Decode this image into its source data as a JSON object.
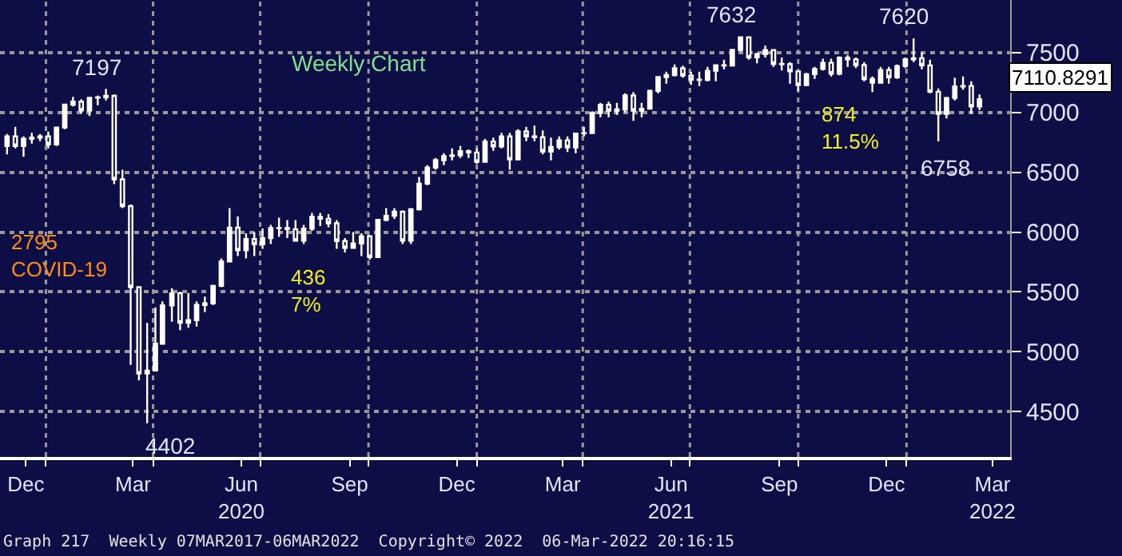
{
  "chart_data": {
    "type": "candlestick",
    "title": "Weekly Chart",
    "x": [
      "2019-11-29",
      "2019-12-06",
      "2019-12-13",
      "2019-12-20",
      "2019-12-27",
      "2020-01-03",
      "2020-01-10",
      "2020-01-17",
      "2020-01-24",
      "2020-01-31",
      "2020-02-07",
      "2020-02-14",
      "2020-02-21",
      "2020-02-28",
      "2020-03-06",
      "2020-03-13",
      "2020-03-20",
      "2020-03-27",
      "2020-04-03",
      "2020-04-09",
      "2020-04-17",
      "2020-04-24",
      "2020-05-01",
      "2020-05-08",
      "2020-05-15",
      "2020-05-22",
      "2020-05-29",
      "2020-06-05",
      "2020-06-12",
      "2020-06-19",
      "2020-06-26",
      "2020-07-03",
      "2020-07-10",
      "2020-07-17",
      "2020-07-24",
      "2020-07-31",
      "2020-08-07",
      "2020-08-14",
      "2020-08-21",
      "2020-08-28",
      "2020-09-04",
      "2020-09-11",
      "2020-09-18",
      "2020-09-25",
      "2020-10-02",
      "2020-10-09",
      "2020-10-16",
      "2020-10-23",
      "2020-10-30",
      "2020-11-06",
      "2020-11-13",
      "2020-11-20",
      "2020-11-27",
      "2020-12-04",
      "2020-12-11",
      "2020-12-18",
      "2020-12-25",
      "2021-01-01",
      "2021-01-08",
      "2021-01-15",
      "2021-01-22",
      "2021-01-29",
      "2021-02-05",
      "2021-02-12",
      "2021-02-19",
      "2021-02-26",
      "2021-03-05",
      "2021-03-12",
      "2021-03-19",
      "2021-03-26",
      "2021-04-02",
      "2021-04-09",
      "2021-04-16",
      "2021-04-23",
      "2021-04-30",
      "2021-05-07",
      "2021-05-14",
      "2021-05-21",
      "2021-05-28",
      "2021-06-04",
      "2021-06-11",
      "2021-06-18",
      "2021-06-25",
      "2021-07-02",
      "2021-07-09",
      "2021-07-16",
      "2021-07-23",
      "2021-07-30",
      "2021-08-06",
      "2021-08-13",
      "2021-08-20",
      "2021-08-27",
      "2021-09-03",
      "2021-09-10",
      "2021-09-17",
      "2021-09-24",
      "2021-10-01",
      "2021-10-08",
      "2021-10-15",
      "2021-10-22",
      "2021-10-29",
      "2021-11-05",
      "2021-11-12",
      "2021-11-19",
      "2021-11-26",
      "2021-12-03",
      "2021-12-10",
      "2021-12-17",
      "2021-12-24",
      "2021-12-31",
      "2022-01-07",
      "2022-01-14",
      "2022-01-21",
      "2022-01-28",
      "2022-02-04",
      "2022-02-11",
      "2022-02-18",
      "2022-02-25",
      "2022-03-04"
    ],
    "ohlc": [
      [
        6720,
        6820,
        6650,
        6800
      ],
      [
        6800,
        6880,
        6700,
        6720
      ],
      [
        6720,
        6800,
        6630,
        6780
      ],
      [
        6780,
        6830,
        6740,
        6790
      ],
      [
        6790,
        6820,
        6760,
        6800
      ],
      [
        6800,
        6840,
        6700,
        6733
      ],
      [
        6733,
        6880,
        6720,
        6874
      ],
      [
        6874,
        7070,
        6860,
        7065
      ],
      [
        7065,
        7130,
        7050,
        7090
      ],
      [
        7090,
        7110,
        6990,
        7017
      ],
      [
        7017,
        7130,
        6970,
        7123
      ],
      [
        7123,
        7140,
        7060,
        7126
      ],
      [
        7126,
        7197,
        7100,
        7139
      ],
      [
        7139,
        7150,
        6400,
        6441
      ],
      [
        6441,
        6520,
        6200,
        6217
      ],
      [
        6217,
        6230,
        4890,
        5539
      ],
      [
        5539,
        5540,
        4760,
        4817
      ],
      [
        4817,
        5240,
        4402,
        4842
      ],
      [
        4842,
        5370,
        4840,
        5067
      ],
      [
        5067,
        5420,
        5060,
        5387
      ],
      [
        5387,
        5530,
        5250,
        5488
      ],
      [
        5488,
        5500,
        5180,
        5242
      ],
      [
        5242,
        5490,
        5200,
        5264
      ],
      [
        5264,
        5420,
        5210,
        5391
      ],
      [
        5391,
        5460,
        5330,
        5405
      ],
      [
        5405,
        5560,
        5390,
        5550
      ],
      [
        5550,
        5780,
        5540,
        5755
      ],
      [
        5755,
        6200,
        5750,
        6037
      ],
      [
        6037,
        6130,
        5800,
        5847
      ],
      [
        5847,
        5990,
        5780,
        5942
      ],
      [
        5942,
        6000,
        5800,
        5897
      ],
      [
        5897,
        6030,
        5860,
        5950
      ],
      [
        5950,
        6060,
        5900,
        6034
      ],
      [
        6034,
        6120,
        5960,
        6033
      ],
      [
        6033,
        6100,
        5950,
        6024
      ],
      [
        6024,
        6100,
        5920,
        5928
      ],
      [
        5928,
        6060,
        5900,
        6028
      ],
      [
        6028,
        6160,
        6010,
        6127
      ],
      [
        6127,
        6160,
        6050,
        6111
      ],
      [
        6111,
        6150,
        6040,
        6073
      ],
      [
        6073,
        6100,
        5860,
        5925
      ],
      [
        5925,
        5950,
        5830,
        5867
      ],
      [
        5867,
        6000,
        5860,
        5905
      ],
      [
        5905,
        5990,
        5800,
        5965
      ],
      [
        5965,
        5970,
        5770,
        5791
      ],
      [
        5791,
        6110,
        5790,
        6102
      ],
      [
        6102,
        6200,
        6090,
        6136
      ],
      [
        6136,
        6200,
        6110,
        6170
      ],
      [
        6170,
        6180,
        5900,
        5927
      ],
      [
        5927,
        6200,
        5900,
        6190
      ],
      [
        6190,
        6460,
        6180,
        6405
      ],
      [
        6405,
        6560,
        6390,
        6539
      ],
      [
        6539,
        6620,
        6520,
        6601
      ],
      [
        6601,
        6660,
        6560,
        6635
      ],
      [
        6635,
        6700,
        6600,
        6642
      ],
      [
        6642,
        6720,
        6620,
        6676
      ],
      [
        6676,
        6690,
        6620,
        6665
      ],
      [
        6665,
        6700,
        6570,
        6587
      ],
      [
        6587,
        6780,
        6580,
        6757
      ],
      [
        6757,
        6790,
        6680,
        6715
      ],
      [
        6715,
        6830,
        6700,
        6800
      ],
      [
        6800,
        6830,
        6520,
        6607
      ],
      [
        6607,
        6860,
        6600,
        6841
      ],
      [
        6841,
        6880,
        6760,
        6800
      ],
      [
        6800,
        6890,
        6760,
        6793
      ],
      [
        6793,
        6850,
        6650,
        6673
      ],
      [
        6673,
        6790,
        6600,
        6711
      ],
      [
        6711,
        6800,
        6690,
        6767
      ],
      [
        6767,
        6800,
        6670,
        6708
      ],
      [
        6708,
        6830,
        6660,
        6824
      ],
      [
        6824,
        6880,
        6800,
        6828
      ],
      [
        6828,
        7010,
        6820,
        6995
      ],
      [
        6995,
        7080,
        6960,
        7063
      ],
      [
        7063,
        7090,
        6960,
        7014
      ],
      [
        7014,
        7080,
        6980,
        7025
      ],
      [
        7025,
        7160,
        7000,
        7142
      ],
      [
        7142,
        7170,
        6930,
        7014
      ],
      [
        7014,
        7080,
        6960,
        7031
      ],
      [
        7031,
        7190,
        7030,
        7180
      ],
      [
        7180,
        7300,
        7160,
        7296
      ],
      [
        7296,
        7340,
        7240,
        7312
      ],
      [
        7312,
        7400,
        7300,
        7369
      ],
      [
        7369,
        7390,
        7290,
        7308
      ],
      [
        7308,
        7340,
        7230,
        7274
      ],
      [
        7274,
        7340,
        7220,
        7272
      ],
      [
        7272,
        7380,
        7260,
        7348
      ],
      [
        7348,
        7400,
        7260,
        7395
      ],
      [
        7395,
        7440,
        7360,
        7392
      ],
      [
        7392,
        7530,
        7390,
        7523
      ],
      [
        7523,
        7632,
        7510,
        7628
      ],
      [
        7628,
        7632,
        7440,
        7460
      ],
      [
        7460,
        7500,
        7410,
        7488
      ],
      [
        7488,
        7560,
        7460,
        7522
      ],
      [
        7522,
        7530,
        7380,
        7406
      ],
      [
        7406,
        7460,
        7350,
        7404
      ],
      [
        7404,
        7420,
        7240,
        7343
      ],
      [
        7343,
        7350,
        7180,
        7229
      ],
      [
        7229,
        7330,
        7220,
        7320
      ],
      [
        7320,
        7380,
        7280,
        7363
      ],
      [
        7363,
        7450,
        7350,
        7415
      ],
      [
        7415,
        7450,
        7300,
        7324
      ],
      [
        7324,
        7470,
        7310,
        7457
      ],
      [
        7457,
        7480,
        7380,
        7443
      ],
      [
        7443,
        7460,
        7370,
        7396
      ],
      [
        7396,
        7420,
        7260,
        7279
      ],
      [
        7279,
        7300,
        7170,
        7249
      ],
      [
        7249,
        7380,
        7240,
        7354
      ],
      [
        7354,
        7380,
        7240,
        7293
      ],
      [
        7293,
        7400,
        7280,
        7388
      ],
      [
        7388,
        7460,
        7370,
        7444
      ],
      [
        7444,
        7620,
        7420,
        7453
      ],
      [
        7453,
        7500,
        7360,
        7393
      ],
      [
        7393,
        7440,
        7160,
        7173
      ],
      [
        7173,
        7200,
        6758,
        6988
      ],
      [
        6988,
        7130,
        6950,
        7121
      ],
      [
        7121,
        7290,
        7100,
        7217
      ],
      [
        7217,
        7300,
        7190,
        7221
      ],
      [
        7221,
        7260,
        6990,
        7049
      ],
      [
        7049,
        7150,
        7020,
        7110.8291
      ]
    ],
    "color": "#ffffff",
    "xlim": [
      "2019-11-23",
      "2022-03-30"
    ],
    "xticks": [
      {
        "value": "2019-12-15",
        "label": "Dec"
      },
      {
        "value": "2020-01-01",
        "label": null
      },
      {
        "value": "2020-03-15",
        "label": "Mar"
      },
      {
        "value": "2020-04-01",
        "label": null
      },
      {
        "value": "2020-06-15",
        "label": "Jun\n2020"
      },
      {
        "value": "2020-07-01",
        "label": null
      },
      {
        "value": "2020-09-15",
        "label": "Sep"
      },
      {
        "value": "2020-10-01",
        "label": null
      },
      {
        "value": "2020-12-15",
        "label": "Dec"
      },
      {
        "value": "2021-01-01",
        "label": null
      },
      {
        "value": "2021-03-15",
        "label": "Mar"
      },
      {
        "value": "2021-04-01",
        "label": null
      },
      {
        "value": "2021-06-15",
        "label": "Jun\n2021"
      },
      {
        "value": "2021-07-01",
        "label": null
      },
      {
        "value": "2021-09-15",
        "label": "Sep"
      },
      {
        "value": "2021-10-01",
        "label": null
      },
      {
        "value": "2021-12-15",
        "label": "Dec"
      },
      {
        "value": "2022-01-01",
        "label": null
      },
      {
        "value": "2022-03-15",
        "label": "Mar\n2022"
      }
    ],
    "ylim": [
      4120,
      7940
    ],
    "yticks": [
      4500,
      5000,
      5500,
      6000,
      6500,
      7000,
      7500
    ],
    "grid": true,
    "annotations": [
      {
        "text": "7197",
        "x": "2020-02-21",
        "y": 7197
      },
      {
        "text": "4402",
        "x": "2020-03-27",
        "y": 4402
      },
      {
        "text": "7632",
        "x": "2021-08-13",
        "y": 7632
      },
      {
        "text": "7620",
        "x": "2022-01-07",
        "y": 7620
      },
      {
        "text": "6758",
        "x": "2022-01-28",
        "y": 6758
      },
      {
        "text": "7110.8291",
        "x": "2022-03-04",
        "y": 7110.8291
      },
      "2795\nCOVID-19",
      "436\n7%",
      "874\n11.5%",
      "Graph 217  Weekly 07MAR2017-06MAR2022  Copyright© 2022  06-Mar-2022 20:16:15"
    ]
  }
}
